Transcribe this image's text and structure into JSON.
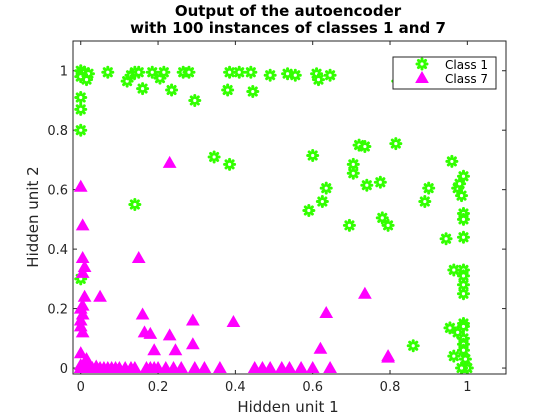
{
  "chart_data": {
    "type": "scatter",
    "title_lines": [
      "Output of the autoencoder",
      "with 100 instances of classes 1 and 7"
    ],
    "xlabel": "Hidden unit 1",
    "ylabel": "Hidden unit 2",
    "xlim": [
      -0.02,
      1.1
    ],
    "ylim": [
      -0.02,
      1.1
    ],
    "xticks": [
      0,
      0.2,
      0.4,
      0.6,
      0.8,
      1
    ],
    "xtick_labels": [
      "0",
      "0.2",
      "0.4",
      "0.6",
      "0.8",
      "1"
    ],
    "yticks": [
      0,
      0.2,
      0.4,
      0.6,
      0.8,
      1
    ],
    "ytick_labels": [
      "0",
      "0.2",
      "0.4",
      "0.6",
      "0.8",
      "1"
    ],
    "grid": false,
    "legend_position": "top-right",
    "series": [
      {
        "name": "Class 1",
        "color": "#33ff00",
        "marker": "asterisk-circle",
        "points": [
          [
            0.0,
            1.0
          ],
          [
            0.005,
            0.99
          ],
          [
            0.01,
            0.995
          ],
          [
            0.02,
            0.99
          ],
          [
            0.0,
            0.98
          ],
          [
            0.015,
            0.97
          ],
          [
            0.0,
            0.91
          ],
          [
            0.0,
            0.87
          ],
          [
            0.0,
            0.8
          ],
          [
            0.0,
            0.3
          ],
          [
            0.07,
            0.995
          ],
          [
            0.12,
            0.965
          ],
          [
            0.13,
            0.985
          ],
          [
            0.14,
            0.995
          ],
          [
            0.15,
            0.995
          ],
          [
            0.16,
            0.94
          ],
          [
            0.185,
            0.995
          ],
          [
            0.205,
            0.975
          ],
          [
            0.215,
            0.995
          ],
          [
            0.235,
            0.935
          ],
          [
            0.265,
            0.995
          ],
          [
            0.28,
            0.995
          ],
          [
            0.295,
            0.9
          ],
          [
            0.38,
            0.935
          ],
          [
            0.385,
            0.995
          ],
          [
            0.41,
            0.995
          ],
          [
            0.44,
            0.995
          ],
          [
            0.445,
            0.93
          ],
          [
            0.49,
            0.985
          ],
          [
            0.535,
            0.99
          ],
          [
            0.555,
            0.985
          ],
          [
            0.61,
            0.99
          ],
          [
            0.615,
            0.97
          ],
          [
            0.645,
            0.985
          ],
          [
            0.82,
            0.965
          ],
          [
            0.14,
            0.55
          ],
          [
            0.345,
            0.71
          ],
          [
            0.385,
            0.685
          ],
          [
            0.6,
            0.715
          ],
          [
            0.59,
            0.53
          ],
          [
            0.625,
            0.56
          ],
          [
            0.635,
            0.605
          ],
          [
            0.695,
            0.48
          ],
          [
            0.705,
            0.655
          ],
          [
            0.705,
            0.685
          ],
          [
            0.72,
            0.75
          ],
          [
            0.735,
            0.745
          ],
          [
            0.74,
            0.615
          ],
          [
            0.775,
            0.625
          ],
          [
            0.78,
            0.505
          ],
          [
            0.795,
            0.48
          ],
          [
            0.815,
            0.755
          ],
          [
            0.86,
            0.075
          ],
          [
            0.89,
            0.56
          ],
          [
            0.9,
            0.605
          ],
          [
            0.945,
            0.435
          ],
          [
            0.955,
            0.135
          ],
          [
            0.96,
            0.695
          ],
          [
            0.965,
            0.33
          ],
          [
            0.975,
            0.605
          ],
          [
            0.975,
            0.12
          ],
          [
            0.965,
            0.04
          ],
          [
            0.98,
            0.62
          ],
          [
            0.985,
            0.58
          ],
          [
            0.99,
            0.645
          ],
          [
            0.99,
            0.52
          ],
          [
            0.99,
            0.5
          ],
          [
            0.99,
            0.44
          ],
          [
            0.99,
            0.33
          ],
          [
            0.99,
            0.31
          ],
          [
            0.99,
            0.28
          ],
          [
            0.99,
            0.25
          ],
          [
            0.99,
            0.15
          ],
          [
            0.99,
            0.14
          ],
          [
            0.99,
            0.1
          ],
          [
            0.99,
            0.08
          ],
          [
            0.99,
            0.06
          ],
          [
            0.995,
            0.03
          ],
          [
            1.0,
            0.0
          ],
          [
            0.985,
            0.0
          ]
        ]
      },
      {
        "name": "Class 7",
        "color": "#ff00ff",
        "marker": "triangle",
        "points": [
          [
            0.0,
            0.61
          ],
          [
            0.005,
            0.48
          ],
          [
            0.005,
            0.37
          ],
          [
            0.01,
            0.34
          ],
          [
            0.005,
            0.32
          ],
          [
            0.01,
            0.24
          ],
          [
            0.005,
            0.21
          ],
          [
            0.0,
            0.2
          ],
          [
            0.005,
            0.18
          ],
          [
            0.0,
            0.16
          ],
          [
            0.0,
            0.14
          ],
          [
            0.005,
            0.12
          ],
          [
            0.0,
            0.05
          ],
          [
            0.0,
            0.01
          ],
          [
            0.0,
            0.0
          ],
          [
            0.01,
            0.0
          ],
          [
            0.02,
            0.01
          ],
          [
            0.03,
            0.0
          ],
          [
            0.04,
            0.005
          ],
          [
            0.05,
            0.24
          ],
          [
            0.05,
            0.0
          ],
          [
            0.06,
            0.0
          ],
          [
            0.07,
            0.0
          ],
          [
            0.08,
            0.0
          ],
          [
            0.09,
            0.0
          ],
          [
            0.1,
            0.0
          ],
          [
            0.115,
            0.0
          ],
          [
            0.13,
            0.0
          ],
          [
            0.14,
            0.0
          ],
          [
            0.15,
            0.37
          ],
          [
            0.16,
            0.18
          ],
          [
            0.165,
            0.12
          ],
          [
            0.17,
            0.0
          ],
          [
            0.18,
            0.0
          ],
          [
            0.18,
            0.115
          ],
          [
            0.19,
            0.0
          ],
          [
            0.19,
            0.06
          ],
          [
            0.2,
            0.0
          ],
          [
            0.22,
            0.0
          ],
          [
            0.23,
            0.69
          ],
          [
            0.23,
            0.11
          ],
          [
            0.24,
            0.0
          ],
          [
            0.245,
            0.06
          ],
          [
            0.26,
            0.0
          ],
          [
            0.29,
            0.16
          ],
          [
            0.29,
            0.08
          ],
          [
            0.295,
            0.0
          ],
          [
            0.32,
            0.0
          ],
          [
            0.36,
            0.0
          ],
          [
            0.395,
            0.155
          ],
          [
            0.45,
            0.0
          ],
          [
            0.47,
            0.0
          ],
          [
            0.49,
            0.0
          ],
          [
            0.52,
            0.0
          ],
          [
            0.54,
            0.0
          ],
          [
            0.57,
            0.0
          ],
          [
            0.6,
            0.0
          ],
          [
            0.62,
            0.065
          ],
          [
            0.635,
            0.185
          ],
          [
            0.645,
            0.0
          ],
          [
            0.735,
            0.25
          ],
          [
            0.795,
            0.04
          ],
          [
            0.795,
            0.035
          ],
          [
            0.0,
            0.0
          ],
          [
            0.015,
            0.03
          ]
        ]
      }
    ]
  }
}
